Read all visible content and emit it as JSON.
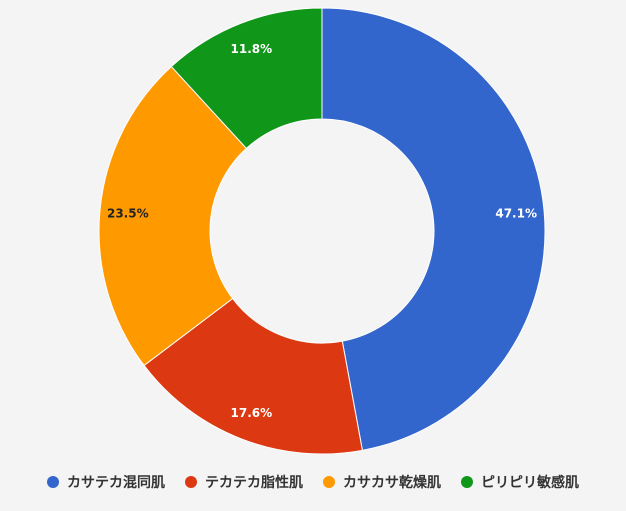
{
  "chart_data": {
    "type": "pie",
    "donut": true,
    "categories": [
      "カサテカ混同肌",
      "テカテカ脂性肌",
      "カサカサ乾燥肌",
      "ピリピリ敏感肌"
    ],
    "values": [
      47.1,
      17.6,
      23.5,
      11.8
    ],
    "value_labels": [
      "47.1%",
      "17.6%",
      "23.5%",
      "11.8%"
    ],
    "colors": [
      "#3366cc",
      "#dc3912",
      "#ff9900",
      "#109618"
    ],
    "label_colors": [
      "#ffffff",
      "#ffffff",
      "#222222",
      "#ffffff"
    ],
    "legend_position": "bottom",
    "start_angle_deg": 0,
    "direction": "clockwise"
  }
}
